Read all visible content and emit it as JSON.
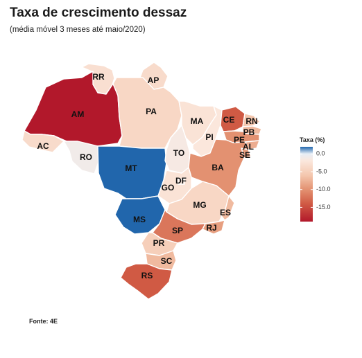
{
  "title": "Taxa de crescimento dessaz",
  "subtitle": "(média móvel 3 meses até maio/2020)",
  "source": "Fonte: 4E",
  "legend": {
    "title": "Taxa (%)",
    "ticks": [
      "0.0",
      "-5.0",
      "-10.0",
      "-15.0"
    ],
    "tick_values": [
      0,
      -5,
      -10,
      -15
    ],
    "range": [
      -19,
      2
    ],
    "color_stops": [
      {
        "value": 2,
        "color": "#2166ac"
      },
      {
        "value": 0,
        "color": "#e7eef6"
      },
      {
        "value": -2,
        "color": "#fbe7dc"
      },
      {
        "value": -6,
        "color": "#f4c7ae"
      },
      {
        "value": -10,
        "color": "#e39171"
      },
      {
        "value": -14,
        "color": "#d05a44"
      },
      {
        "value": -19,
        "color": "#b2182b"
      }
    ]
  },
  "chart_data": {
    "type": "choropleth",
    "title": "Taxa de crescimento dessaz",
    "subtitle": "(média móvel 3 meses até maio/2020)",
    "legend_title": "Taxa (%)",
    "states": [
      {
        "code": "RR",
        "value": -3.0
      },
      {
        "code": "AP",
        "value": -3.5
      },
      {
        "code": "AM",
        "value": -19.0
      },
      {
        "code": "PA",
        "value": -4.0
      },
      {
        "code": "AC",
        "value": -3.5
      },
      {
        "code": "RO",
        "value": -1.0
      },
      {
        "code": "MT",
        "value": 2.0
      },
      {
        "code": "MS",
        "value": 2.5
      },
      {
        "code": "TO",
        "value": -1.5
      },
      {
        "code": "MA",
        "value": -2.5
      },
      {
        "code": "PI",
        "value": -2.0
      },
      {
        "code": "CE",
        "value": -14.0
      },
      {
        "code": "RN",
        "value": -6.0
      },
      {
        "code": "PB",
        "value": -7.0
      },
      {
        "code": "PE",
        "value": -10.0
      },
      {
        "code": "AL",
        "value": -8.0
      },
      {
        "code": "SE",
        "value": -9.0
      },
      {
        "code": "BA",
        "value": -10.0
      },
      {
        "code": "GO",
        "value": -2.5
      },
      {
        "code": "DF",
        "value": -2.0
      },
      {
        "code": "MG",
        "value": -4.0
      },
      {
        "code": "ES",
        "value": -7.0
      },
      {
        "code": "RJ",
        "value": -9.0
      },
      {
        "code": "SP",
        "value": -12.0
      },
      {
        "code": "PR",
        "value": -5.0
      },
      {
        "code": "SC",
        "value": -7.0
      },
      {
        "code": "RS",
        "value": -14.0
      }
    ]
  }
}
